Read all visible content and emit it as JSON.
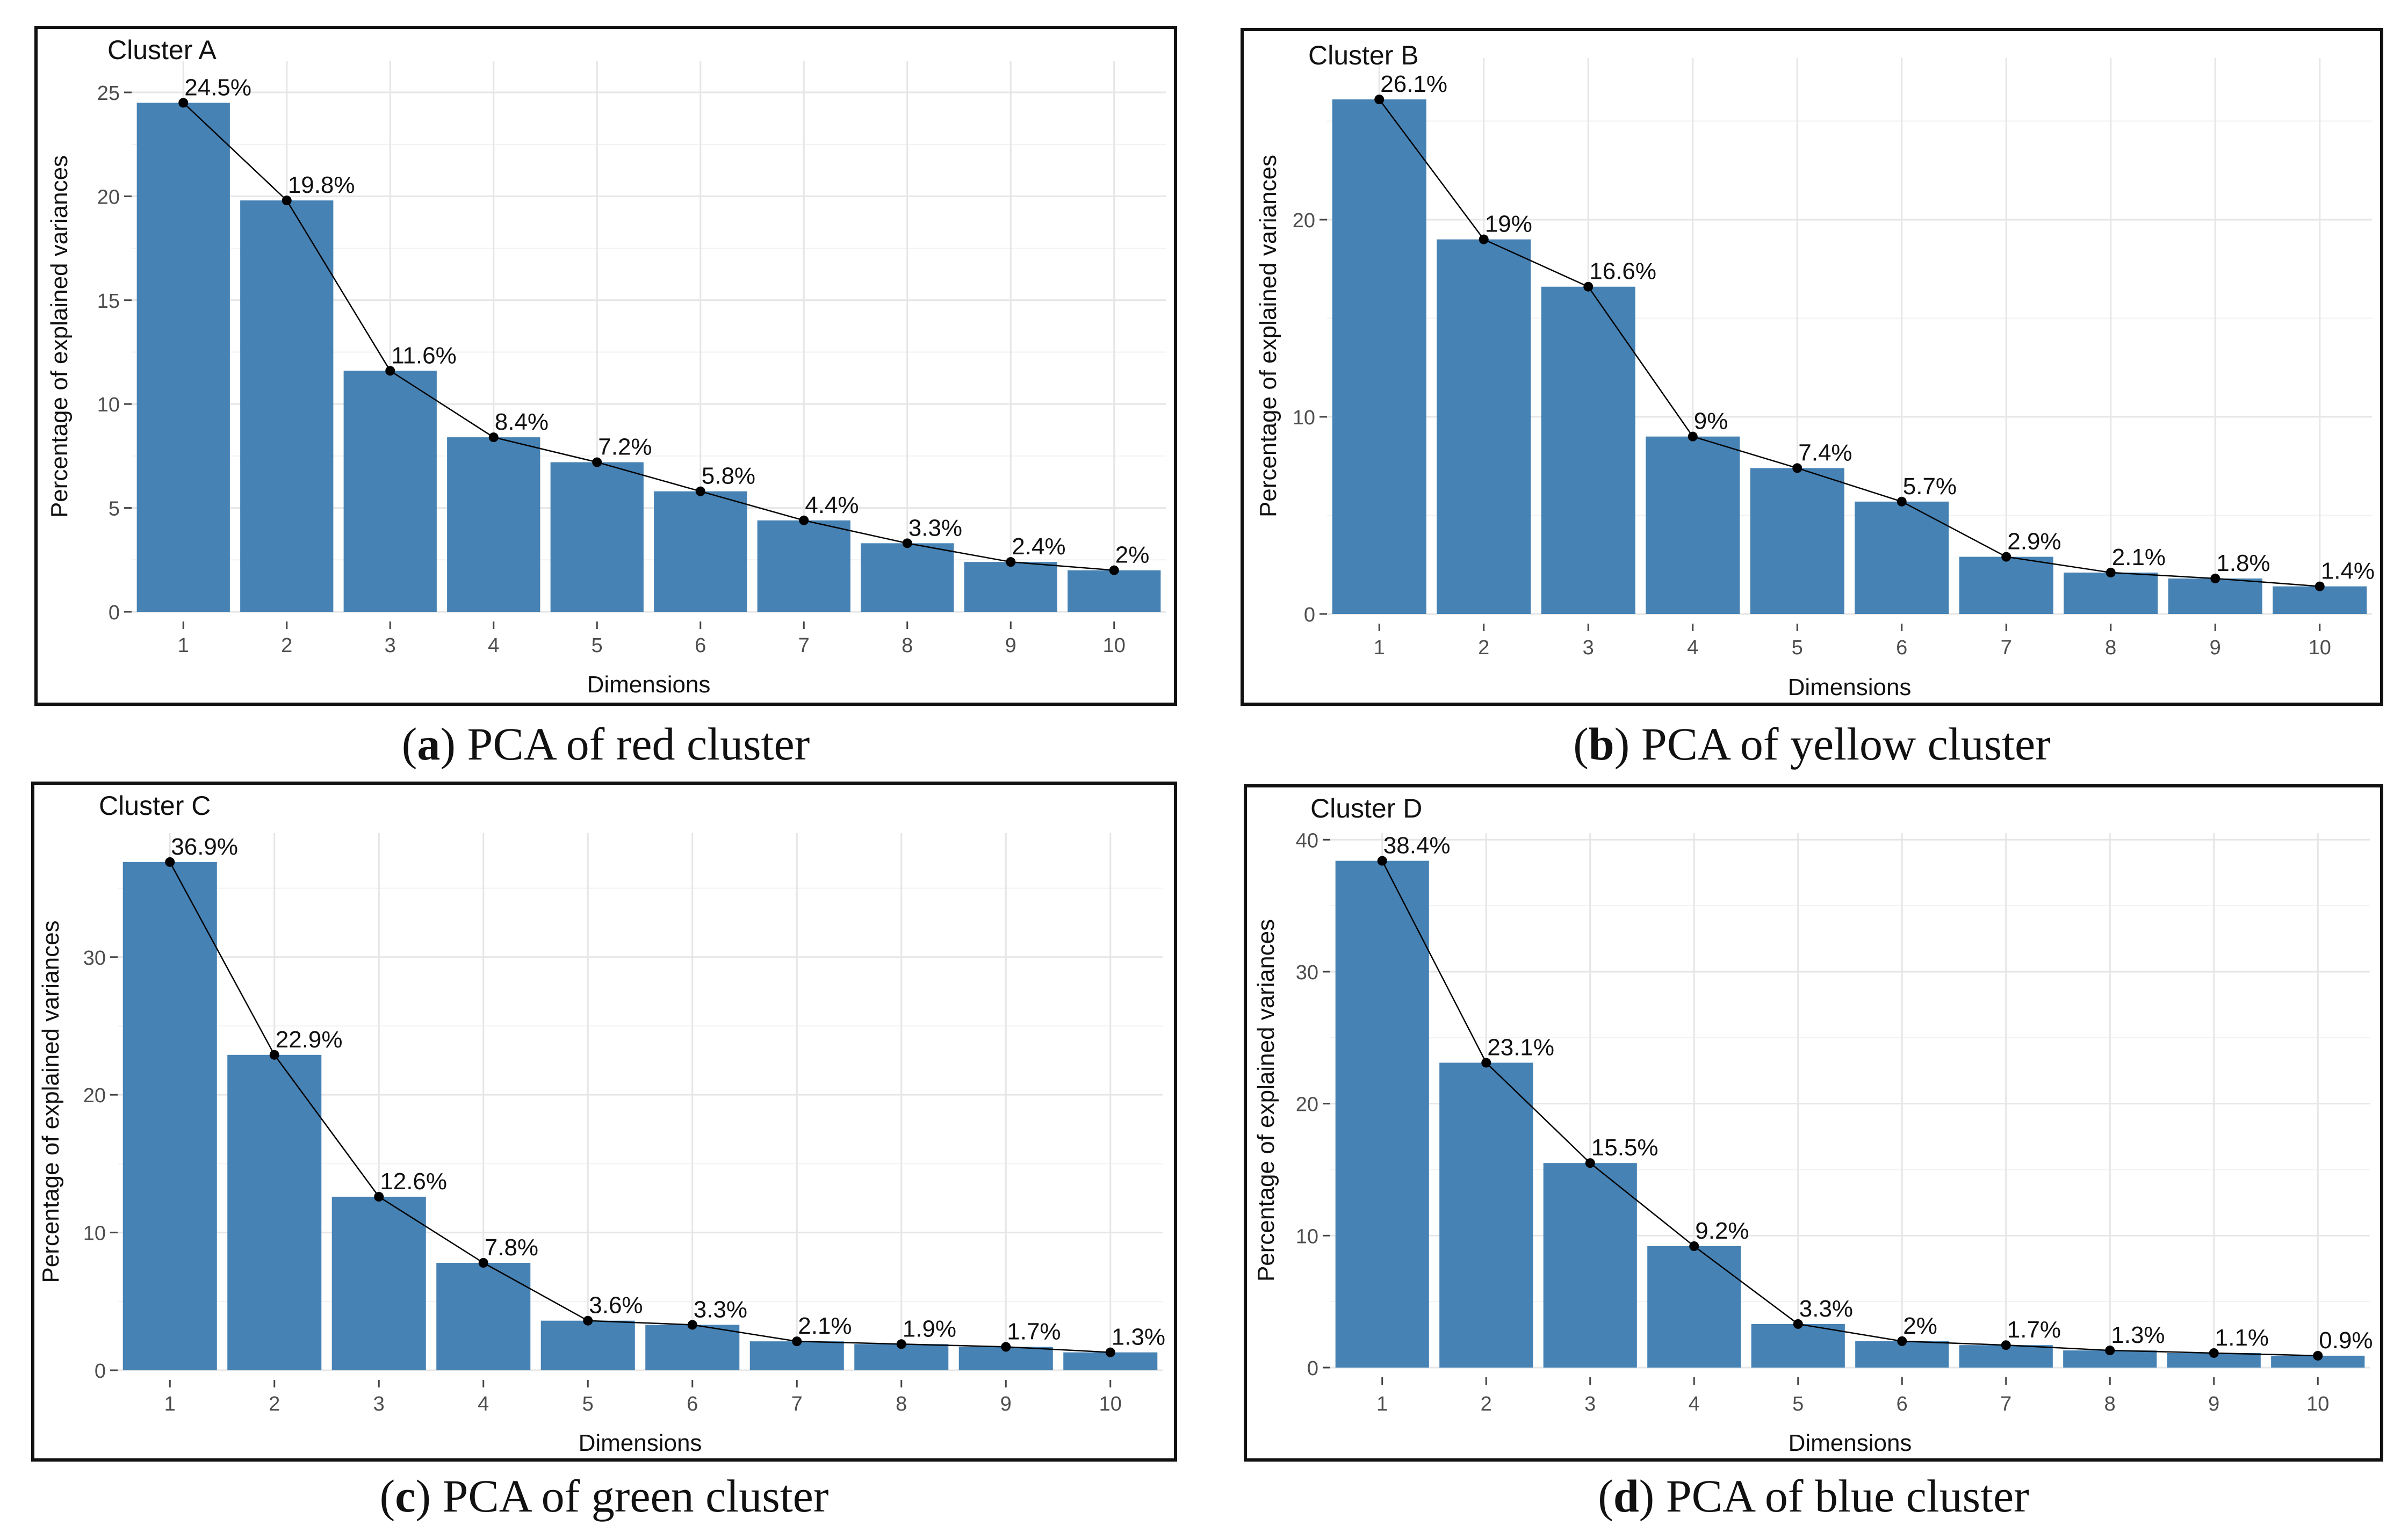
{
  "chart_data": [
    {
      "type": "bar",
      "title": "Cluster A",
      "caption_letter": "a",
      "caption_text": "PCA of red cluster",
      "categories": [
        "1",
        "2",
        "3",
        "4",
        "5",
        "6",
        "7",
        "8",
        "9",
        "10"
      ],
      "values": [
        24.5,
        19.8,
        11.6,
        8.4,
        7.2,
        5.8,
        4.4,
        3.3,
        2.4,
        2.0
      ],
      "labels": [
        "24.5%",
        "19.8%",
        "11.6%",
        "8.4%",
        "7.2%",
        "5.8%",
        "4.4%",
        "3.3%",
        "2.4%",
        "2%"
      ],
      "yticks": [
        "0",
        "5",
        "10",
        "15",
        "20",
        "25"
      ],
      "ytick_values": [
        0,
        5,
        10,
        15,
        20,
        25
      ],
      "ylim": [
        0,
        26.5
      ],
      "xlabel": "Dimensions",
      "ylabel": "Percentage of explained variances",
      "bar_color": "#4682B4",
      "line_color": "#000000"
    },
    {
      "type": "bar",
      "title": "Cluster B",
      "caption_letter": "b",
      "caption_text": "PCA of yellow cluster",
      "categories": [
        "1",
        "2",
        "3",
        "4",
        "5",
        "6",
        "7",
        "8",
        "9",
        "10"
      ],
      "values": [
        26.1,
        19.0,
        16.6,
        9.0,
        7.4,
        5.7,
        2.9,
        2.1,
        1.8,
        1.4
      ],
      "labels": [
        "26.1%",
        "19%",
        "16.6%",
        "9%",
        "7.4%",
        "5.7%",
        "2.9%",
        "2.1%",
        "1.8%",
        "1.4%"
      ],
      "yticks": [
        "0",
        "10",
        "20"
      ],
      "ytick_values": [
        0,
        10,
        20
      ],
      "ylim": [
        0,
        28.2
      ],
      "xlabel": "Dimensions",
      "ylabel": "Percentage of explained variances",
      "bar_color": "#4682B4",
      "line_color": "#000000"
    },
    {
      "type": "bar",
      "title": "Cluster C",
      "caption_letter": "c",
      "caption_text": "PCA of green cluster",
      "categories": [
        "1",
        "2",
        "3",
        "4",
        "5",
        "6",
        "7",
        "8",
        "9",
        "10"
      ],
      "values": [
        36.9,
        22.9,
        12.6,
        7.8,
        3.6,
        3.3,
        2.1,
        1.9,
        1.7,
        1.3
      ],
      "labels": [
        "36.9%",
        "22.9%",
        "12.6%",
        "7.8%",
        "3.6%",
        "3.3%",
        "2.1%",
        "1.9%",
        "1.7%",
        "1.3%"
      ],
      "yticks": [
        "0",
        "10",
        "20",
        "30"
      ],
      "ytick_values": [
        0,
        10,
        20,
        30
      ],
      "ylim": [
        0,
        39.0
      ],
      "xlabel": "Dimensions",
      "ylabel": "Percentage of explained variances",
      "bar_color": "#4682B4",
      "line_color": "#000000"
    },
    {
      "type": "bar",
      "title": "Cluster D",
      "caption_letter": "d",
      "caption_text": "PCA of blue cluster",
      "categories": [
        "1",
        "2",
        "3",
        "4",
        "5",
        "6",
        "7",
        "8",
        "9",
        "10"
      ],
      "values": [
        38.4,
        23.1,
        15.5,
        9.2,
        3.3,
        2.0,
        1.7,
        1.3,
        1.1,
        0.9
      ],
      "labels": [
        "38.4%",
        "23.1%",
        "15.5%",
        "9.2%",
        "3.3%",
        "2%",
        "1.7%",
        "1.3%",
        "1.1%",
        "0.9%"
      ],
      "yticks": [
        "0",
        "10",
        "20",
        "30",
        "40"
      ],
      "ytick_values": [
        0,
        10,
        20,
        30,
        40
      ],
      "ylim": [
        0,
        40.5
      ],
      "xlabel": "Dimensions",
      "ylabel": "Percentage of explained variances",
      "bar_color": "#4682B4",
      "line_color": "#000000"
    }
  ]
}
